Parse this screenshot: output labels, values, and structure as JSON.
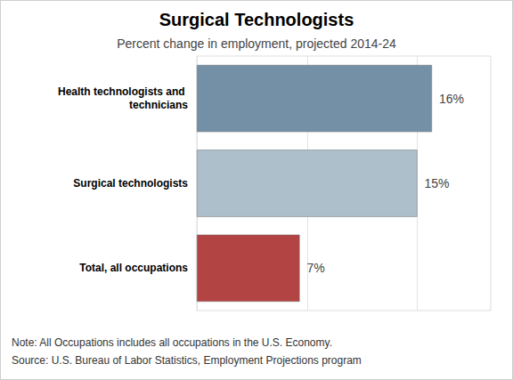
{
  "chart_data": {
    "type": "bar",
    "orientation": "horizontal",
    "title": "Surgical Technologists",
    "subtitle": "Percent change in employment, projected 2014-24",
    "categories": [
      "Health technologists and technicians",
      "Surgical technologists",
      "Total, all occupations"
    ],
    "values": [
      16,
      15,
      7
    ],
    "value_labels": [
      "16%",
      "15%",
      "7%"
    ],
    "colors": [
      "#7390a6",
      "#adbfcb",
      "#b34444"
    ],
    "data_labels": true,
    "xlim": [
      0,
      20
    ],
    "xticks": [
      0,
      7.5,
      15
    ],
    "grid": true,
    "tick_labels": "y",
    "notes": [
      "Note: All Occupations includes all occupations in the U.S. Economy.",
      "Source: U.S. Bureau of Labor Statistics, Employment Projections program"
    ]
  }
}
